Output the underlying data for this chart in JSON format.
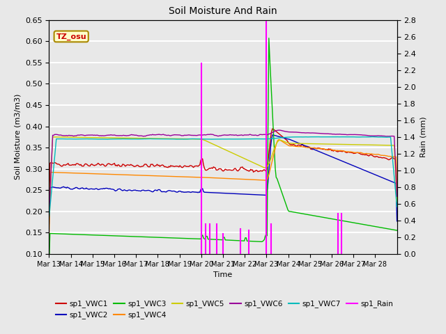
{
  "title": "Soil Moisture And Rain",
  "xlabel": "Time",
  "ylabel_left": "Soil Moisture (m3/m3)",
  "ylabel_right": "Rain (mm)",
  "site_label": "TZ_osu",
  "ylim_left": [
    0.1,
    0.65
  ],
  "ylim_right": [
    0.0,
    2.8
  ],
  "xtick_labels": [
    "Mar 13",
    "Mar 14",
    "Mar 15",
    "Mar 16",
    "Mar 17",
    "Mar 18",
    "Mar 19",
    "Mar 20",
    "Mar 21",
    "Mar 22",
    "Mar 23",
    "Mar 24",
    "Mar 25",
    "Mar 26",
    "Mar 27",
    "Mar 28"
  ],
  "colors": {
    "sp1_VWC1": "#cc0000",
    "sp1_VWC2": "#0000bb",
    "sp1_VWC3": "#00bb00",
    "sp1_VWC4": "#ff8800",
    "sp1_VWC5": "#cccc00",
    "sp1_VWC6": "#990099",
    "sp1_VWC7": "#00bbbb",
    "sp1_Rain": "#ff00ff"
  },
  "bg_light": "#e8e8e8",
  "bg_dark": "#d0d0d0",
  "fig_bg": "#e8e8e8"
}
